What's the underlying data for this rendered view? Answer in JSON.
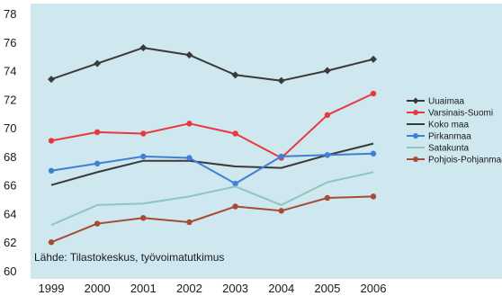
{
  "chart_data": {
    "type": "line",
    "x": [
      1999,
      2000,
      2001,
      2002,
      2003,
      2004,
      2005,
      2006
    ],
    "ylim": [
      60,
      78
    ],
    "yticks": [
      60,
      62,
      64,
      66,
      68,
      70,
      72,
      74,
      76,
      78
    ],
    "grid": false,
    "legend_position": "right",
    "source": "Lähde: Tilastokeskus, työvoimatutkimus",
    "background": "#cfe7ef",
    "series": [
      {
        "name": "Uuaimaa",
        "color": "#3a3a3a",
        "marker": "diamond",
        "values": [
          73.4,
          74.5,
          75.6,
          75.1,
          73.7,
          73.3,
          74.0,
          74.8
        ]
      },
      {
        "name": "Varsinais-Suomi",
        "color": "#e8393f",
        "marker": "circle",
        "values": [
          69.1,
          69.7,
          69.6,
          70.3,
          69.6,
          67.9,
          70.9,
          72.4
        ]
      },
      {
        "name": "Koko maa",
        "color": "#3a3a3a",
        "marker": "none",
        "values": [
          66.0,
          66.9,
          67.7,
          67.7,
          67.3,
          67.2,
          68.1,
          68.9
        ]
      },
      {
        "name": "Pirkanmaa",
        "color": "#3f7fd6",
        "marker": "circle",
        "values": [
          67.0,
          67.5,
          68.0,
          67.9,
          66.1,
          68.0,
          68.1,
          68.2
        ]
      },
      {
        "name": "Satakunta",
        "color": "#8ec6bf",
        "marker": "none",
        "values": [
          63.2,
          64.6,
          64.7,
          65.2,
          65.9,
          64.6,
          66.2,
          66.9
        ]
      },
      {
        "name": "Pohjois-Pohjanmaa",
        "color": "#a54c36",
        "marker": "circle",
        "values": [
          62.0,
          63.3,
          63.7,
          63.4,
          64.5,
          64.2,
          65.1,
          65.2
        ]
      }
    ]
  }
}
